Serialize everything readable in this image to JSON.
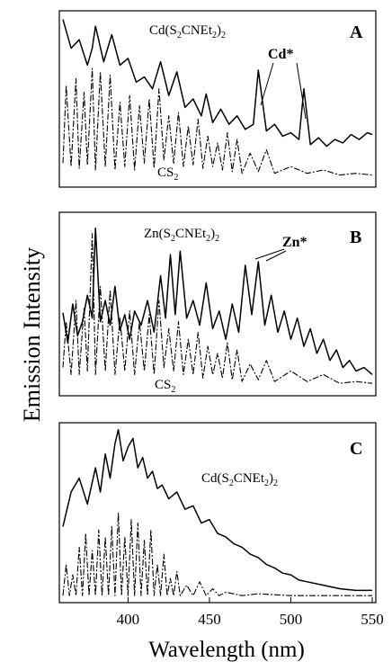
{
  "figure": {
    "ylabel": "Emission Intensity",
    "xlabel": "Wavelength (nm)"
  },
  "panels": [
    {
      "letter": "A",
      "compound_label": {
        "prefix": "Cd(S",
        "sub1": "2",
        "middle": "CNEt",
        "sub2": "2",
        "suffix": ")",
        "sub3": "2"
      },
      "lower_label": {
        "main": "CS",
        "sub": "2"
      },
      "atomic_label": "Cd*"
    },
    {
      "letter": "B",
      "compound_label": {
        "prefix": "Zn(S",
        "sub1": "2",
        "middle": "CNEt",
        "sub2": "2",
        "suffix": ")",
        "sub3": "2"
      },
      "lower_label": {
        "main": "CS",
        "sub": "2"
      },
      "atomic_label": "Zn*"
    },
    {
      "letter": "C",
      "compound_label": {
        "prefix": "Cd(S",
        "sub1": "2",
        "middle": "CNEt",
        "sub2": "2",
        "suffix": ")",
        "sub3": "2"
      }
    }
  ],
  "chart_data": {
    "type": "line",
    "xlabel": "Wavelength (nm)",
    "ylabel": "Emission Intensity",
    "xlim": [
      360,
      550
    ],
    "x_ticks": [
      400,
      450,
      500,
      550
    ],
    "shared_x": true,
    "subplots": [
      {
        "panel": "A",
        "series": [
          {
            "name": "Cd(S2CNEt2)2",
            "x": [
              360,
              365,
              370,
              375,
              378,
              380,
              385,
              390,
              395,
              400,
              405,
              410,
              415,
              420,
              425,
              430,
              435,
              440,
              445,
              448,
              452,
              457,
              462,
              467,
              472,
              477,
              480,
              485,
              490,
              495,
              500,
              505,
              508,
              512,
              517,
              522,
              527,
              532,
              537,
              542,
              547,
              550
            ],
            "y": [
              0.97,
              0.8,
              0.85,
              0.7,
              0.8,
              0.93,
              0.72,
              0.88,
              0.7,
              0.74,
              0.6,
              0.63,
              0.56,
              0.72,
              0.52,
              0.66,
              0.45,
              0.5,
              0.4,
              0.53,
              0.36,
              0.44,
              0.35,
              0.4,
              0.32,
              0.35,
              0.67,
              0.31,
              0.35,
              0.28,
              0.3,
              0.26,
              0.56,
              0.23,
              0.27,
              0.22,
              0.26,
              0.24,
              0.29,
              0.26,
              0.3,
              0.29
            ]
          },
          {
            "name": "CS2",
            "x": [
              360,
              362,
              365,
              368,
              370,
              373,
              375,
              378,
              380,
              383,
              386,
              389,
              392,
              395,
              398,
              401,
              404,
              407,
              410,
              413,
              416,
              419,
              422,
              425,
              428,
              431,
              434,
              437,
              440,
              443,
              446,
              449,
              452,
              455,
              458,
              461,
              464,
              467,
              470,
              475,
              480,
              485,
              490,
              500,
              510,
              520,
              530,
              540,
              550
            ],
            "y": [
              0.12,
              0.58,
              0.1,
              0.62,
              0.09,
              0.54,
              0.11,
              0.68,
              0.08,
              0.66,
              0.1,
              0.64,
              0.08,
              0.48,
              0.1,
              0.52,
              0.08,
              0.46,
              0.12,
              0.5,
              0.09,
              0.56,
              0.14,
              0.4,
              0.12,
              0.42,
              0.1,
              0.34,
              0.11,
              0.38,
              0.09,
              0.28,
              0.1,
              0.24,
              0.08,
              0.3,
              0.07,
              0.26,
              0.06,
              0.18,
              0.07,
              0.2,
              0.06,
              0.1,
              0.06,
              0.08,
              0.05,
              0.06,
              0.05
            ]
          }
        ],
        "annotations": [
          {
            "text": "Cd*",
            "target_x": [
              480,
              508
            ]
          }
        ]
      },
      {
        "panel": "B",
        "series": [
          {
            "name": "Zn(S2CNEt2)2",
            "x": [
              360,
              363,
              366,
              369,
              372,
              375,
              378,
              380,
              383,
              386,
              389,
              392,
              395,
              398,
              401,
              404,
              408,
              412,
              416,
              420,
              423,
              426,
              429,
              432,
              436,
              440,
              444,
              448,
              452,
              456,
              460,
              464,
              468,
              472,
              476,
              480,
              484,
              488,
              492,
              496,
              500,
              504,
              508,
              512,
              516,
              520,
              524,
              528,
              532,
              536,
              540,
              545,
              550
            ],
            "y": [
              0.45,
              0.28,
              0.5,
              0.32,
              0.4,
              0.55,
              0.42,
              0.93,
              0.4,
              0.52,
              0.38,
              0.6,
              0.35,
              0.44,
              0.3,
              0.46,
              0.38,
              0.52,
              0.34,
              0.66,
              0.42,
              0.78,
              0.44,
              0.8,
              0.42,
              0.52,
              0.38,
              0.62,
              0.36,
              0.46,
              0.3,
              0.5,
              0.34,
              0.72,
              0.44,
              0.74,
              0.38,
              0.55,
              0.34,
              0.46,
              0.3,
              0.42,
              0.26,
              0.36,
              0.22,
              0.3,
              0.18,
              0.24,
              0.14,
              0.18,
              0.12,
              0.14,
              0.1
            ]
          },
          {
            "name": "CS2",
            "x": [
              360,
              362,
              365,
              368,
              370,
              373,
              375,
              378,
              380,
              383,
              386,
              389,
              392,
              395,
              398,
              401,
              404,
              407,
              410,
              413,
              416,
              419,
              422,
              425,
              428,
              431,
              434,
              437,
              440,
              443,
              446,
              449,
              452,
              455,
              458,
              461,
              464,
              467,
              470,
              475,
              480,
              485,
              490,
              500,
              510,
              520,
              530,
              540,
              550
            ],
            "y": [
              0.14,
              0.4,
              0.1,
              0.52,
              0.1,
              0.48,
              0.12,
              0.9,
              0.1,
              0.6,
              0.12,
              0.58,
              0.1,
              0.42,
              0.12,
              0.46,
              0.1,
              0.4,
              0.12,
              0.44,
              0.1,
              0.52,
              0.14,
              0.36,
              0.12,
              0.4,
              0.1,
              0.3,
              0.1,
              0.34,
              0.08,
              0.26,
              0.1,
              0.22,
              0.08,
              0.28,
              0.07,
              0.24,
              0.06,
              0.16,
              0.07,
              0.18,
              0.06,
              0.12,
              0.06,
              0.1,
              0.05,
              0.06,
              0.05
            ]
          }
        ],
        "annotations": [
          {
            "text": "Zn*",
            "target_x": [
              472,
              481
            ]
          }
        ]
      },
      {
        "panel": "C",
        "series": [
          {
            "name": "Cd(S2CNEt2)2",
            "x": [
              360,
              365,
              370,
              375,
              380,
              383,
              386,
              389,
              392,
              394,
              397,
              400,
              403,
              406,
              409,
              412,
              415,
              418,
              421,
              425,
              430,
              435,
              440,
              445,
              450,
              455,
              460,
              465,
              470,
              475,
              480,
              485,
              490,
              495,
              500,
              505,
              510,
              520,
              530,
              540,
              550
            ],
            "y": [
              0.42,
              0.62,
              0.7,
              0.55,
              0.76,
              0.62,
              0.84,
              0.7,
              0.9,
              0.98,
              0.8,
              0.88,
              0.93,
              0.76,
              0.82,
              0.7,
              0.74,
              0.64,
              0.66,
              0.58,
              0.62,
              0.52,
              0.54,
              0.44,
              0.46,
              0.38,
              0.36,
              0.32,
              0.3,
              0.26,
              0.24,
              0.2,
              0.18,
              0.15,
              0.14,
              0.11,
              0.1,
              0.08,
              0.06,
              0.05,
              0.05
            ]
          },
          {
            "name": "CS2",
            "x": [
              360,
              362,
              364,
              366,
              368,
              370,
              372,
              374,
              376,
              378,
              380,
              382,
              384,
              386,
              388,
              390,
              392,
              394,
              396,
              398,
              400,
              402,
              404,
              406,
              408,
              410,
              412,
              414,
              416,
              418,
              420,
              422,
              424,
              426,
              428,
              430,
              432,
              436,
              440,
              444,
              448,
              452,
              456,
              460,
              470,
              480,
              500,
              520,
              550
            ],
            "y": [
              0.02,
              0.2,
              0.02,
              0.14,
              0.02,
              0.3,
              0.02,
              0.38,
              0.02,
              0.28,
              0.02,
              0.4,
              0.02,
              0.36,
              0.02,
              0.42,
              0.02,
              0.5,
              0.02,
              0.36,
              0.02,
              0.46,
              0.02,
              0.44,
              0.02,
              0.34,
              0.02,
              0.4,
              0.02,
              0.2,
              0.02,
              0.26,
              0.02,
              0.12,
              0.02,
              0.16,
              0.02,
              0.08,
              0.02,
              0.1,
              0.02,
              0.06,
              0.02,
              0.04,
              0.02,
              0.03,
              0.02,
              0.02,
              0.02
            ]
          }
        ],
        "annotations": []
      }
    ]
  }
}
